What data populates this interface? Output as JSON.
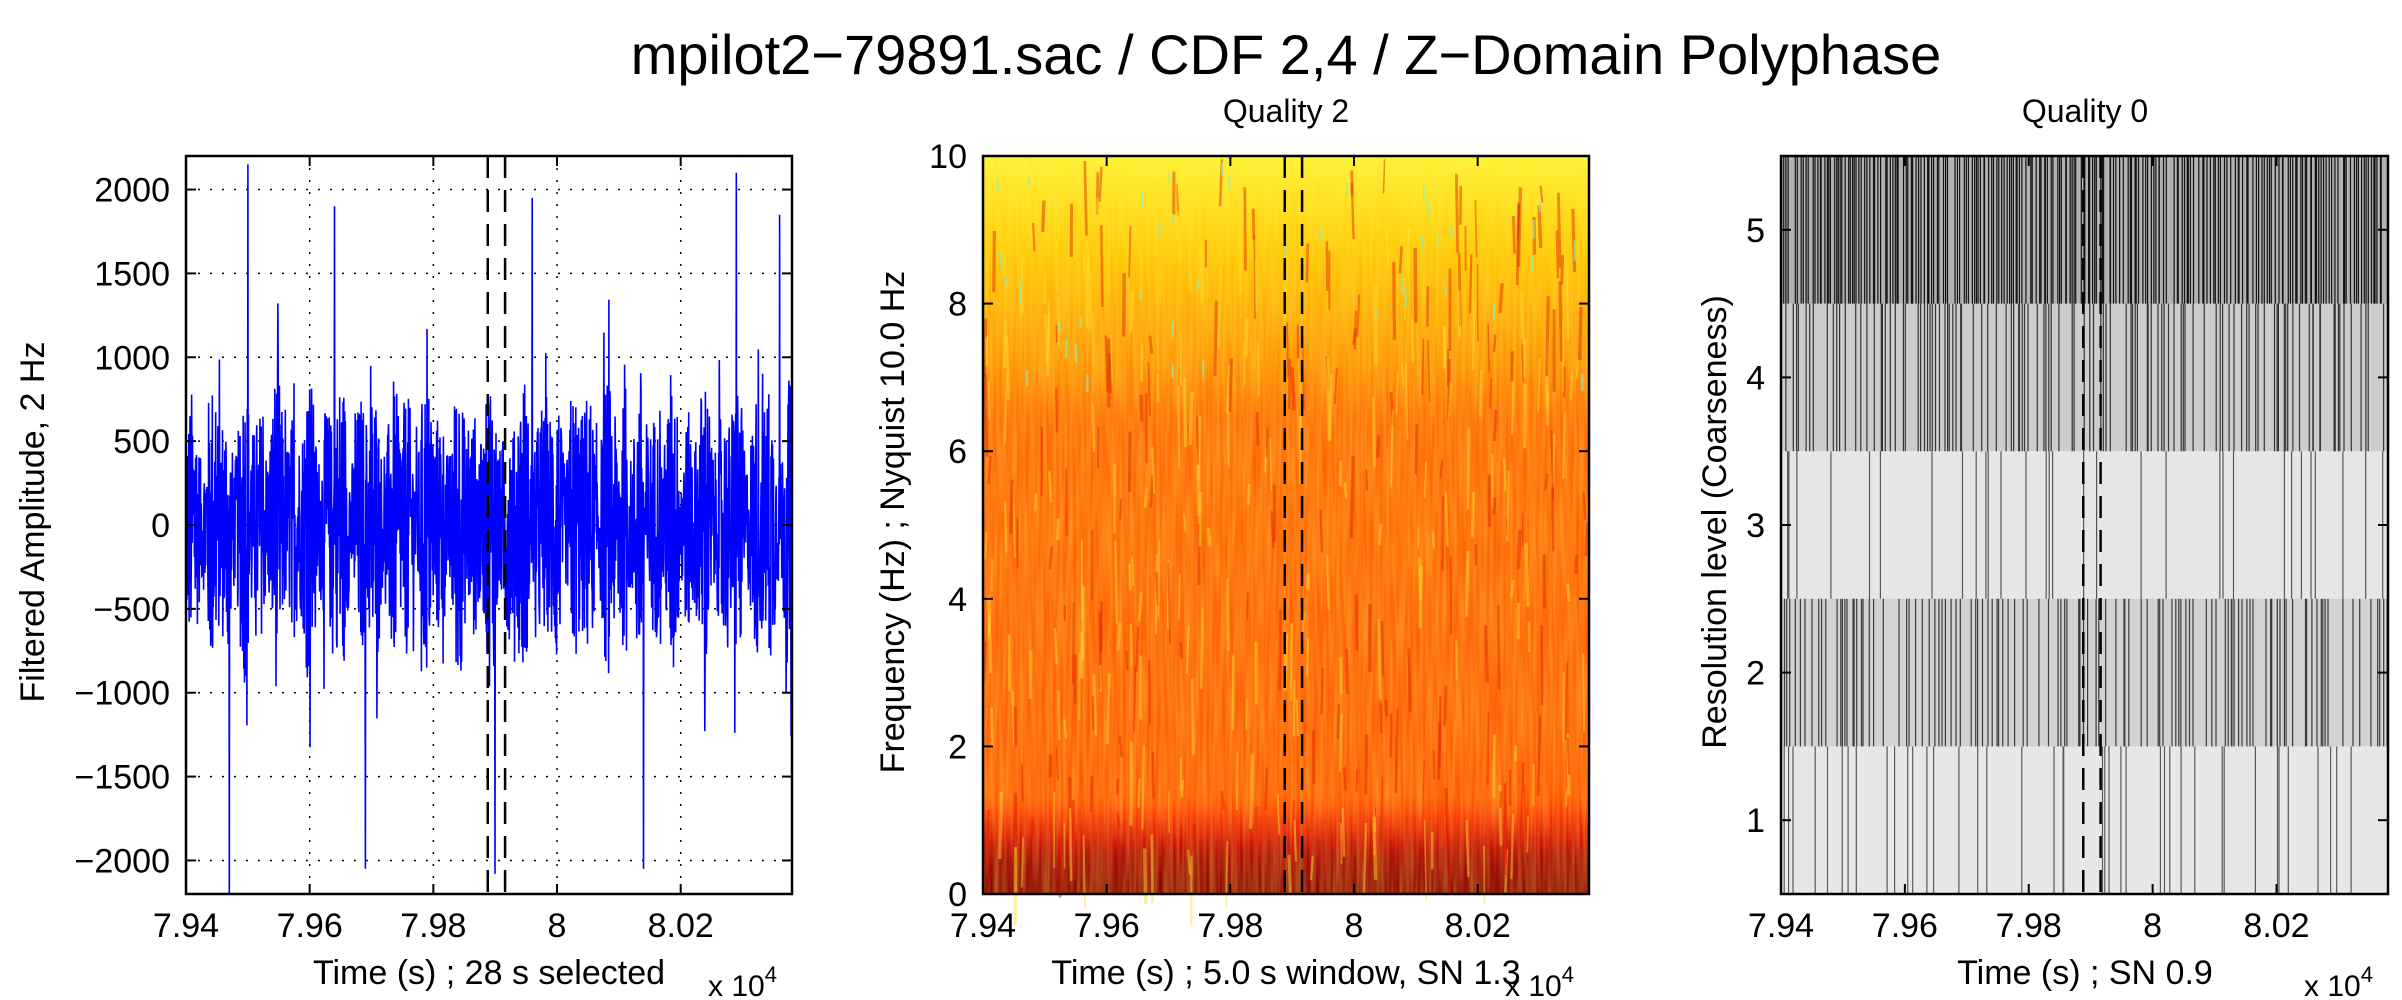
{
  "title": "mpilot2−79891.sac / CDF 2,4 / Z−Domain Polyphase",
  "chart_data": [
    {
      "type": "line",
      "title": "",
      "xlabel": "Time (s) ; 28 s selected",
      "ylabel": "Filtered Amplitude, 2 Hz",
      "x_exponent": "x 10^4",
      "xlim": [
        79400,
        80380
      ],
      "ylim": [
        -2200,
        2200
      ],
      "xticks": [
        79400,
        79600,
        79800,
        80000,
        80200
      ],
      "xtick_labels": [
        "7.94",
        "7.96",
        "7.98",
        "8",
        "8.02"
      ],
      "yticks": [
        2000,
        1500,
        1000,
        500,
        0,
        -500,
        -1000,
        -1500,
        -2000
      ],
      "ytick_labels": [
        "2000",
        "1500",
        "1000",
        "500",
        "0",
        "−500",
        "−1000",
        "−1500",
        "−2000"
      ],
      "grid": true,
      "series_color": "#0000ff",
      "signal_envelope": 900,
      "n_samples": 1960,
      "spikes": [
        {
          "x": 79500,
          "y": 2150
        },
        {
          "x": 79640,
          "y": 1900
        },
        {
          "x": 79960,
          "y": 1950
        },
        {
          "x": 80290,
          "y": 2100
        },
        {
          "x": 80360,
          "y": 1850
        },
        {
          "x": 79470,
          "y": -2200
        },
        {
          "x": 79690,
          "y": -2050
        },
        {
          "x": 79900,
          "y": -2080
        },
        {
          "x": 80140,
          "y": -2050
        }
      ],
      "selection_window": [
        79888,
        79916
      ]
    },
    {
      "type": "heatmap",
      "title": "Quality 2",
      "xlabel": "Time (s) ; 5.0 s window, SN   1.3",
      "ylabel": "Frequency (Hz) ; Nyquist  10.0 Hz",
      "x_exponent": "x 10^4",
      "xlim": [
        79400,
        80380
      ],
      "ylim": [
        0,
        10
      ],
      "xticks": [
        79400,
        79600,
        79800,
        80000,
        80200
      ],
      "xtick_labels": [
        "7.94",
        "7.96",
        "7.98",
        "8",
        "8.02"
      ],
      "yticks": [
        0,
        2,
        4,
        6,
        8,
        10
      ],
      "ytick_labels": [
        "0",
        "2",
        "4",
        "6",
        "8",
        "10"
      ],
      "colormap": [
        "#7a0000",
        "#c80000",
        "#ff3000",
        "#ff8c00",
        "#ffc800",
        "#ffff40",
        "#b4ff5a",
        "#5affd2"
      ],
      "selection_window": [
        79888,
        79916
      ]
    },
    {
      "type": "heatmap",
      "title": "Quality 0",
      "xlabel": "Time (s) ; SN   0.9",
      "ylabel": "Resolution level (Coarseness)",
      "x_exponent": "x 10^4",
      "xlim": [
        79400,
        80380
      ],
      "ylim": [
        0.5,
        5.5
      ],
      "xticks": [
        79400,
        79600,
        79800,
        80000,
        80200
      ],
      "xtick_labels": [
        "7.94",
        "7.96",
        "7.98",
        "8",
        "8.02"
      ],
      "yticks": [
        1,
        2,
        3,
        4,
        5
      ],
      "ytick_labels": [
        "1",
        "2",
        "3",
        "4",
        "5"
      ],
      "levels": [
        {
          "level": 1,
          "intensity": 0.14
        },
        {
          "level": 2,
          "intensity": 0.42
        },
        {
          "level": 3,
          "intensity": 0.16
        },
        {
          "level": 4,
          "intensity": 0.48
        },
        {
          "level": 5,
          "intensity": 0.85
        }
      ],
      "selection_window": [
        79888,
        79916
      ]
    }
  ]
}
